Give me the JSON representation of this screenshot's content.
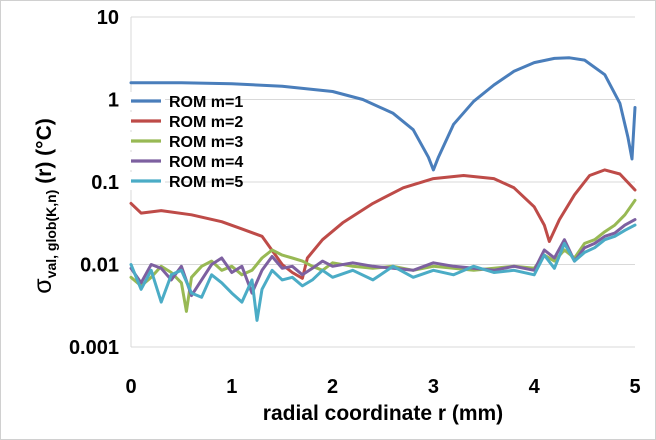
{
  "chart_data": {
    "type": "line",
    "title": "",
    "xlabel": "radial coordinate r (mm)",
    "ylabel": {
      "sigma": "σ",
      "subscript": "val, glob(K,n)",
      "rest": " (r) (°C)"
    },
    "xlim": [
      0,
      5
    ],
    "ylim": [
      0.001,
      10
    ],
    "yscale": "log",
    "grid": "horizontal",
    "legend_position": "upper-left",
    "x_ticks": [
      "0",
      "1",
      "2",
      "3",
      "4",
      "5"
    ],
    "y_ticks": [
      "0.001",
      "0.01",
      "0.1",
      "1",
      "10"
    ],
    "series": [
      {
        "name": "ROM m=1",
        "color": "#4a7ebb",
        "x": [
          0,
          0.5,
          1.0,
          1.5,
          2.0,
          2.3,
          2.6,
          2.8,
          2.95,
          3.0,
          3.05,
          3.2,
          3.4,
          3.6,
          3.8,
          4.0,
          4.2,
          4.35,
          4.5,
          4.7,
          4.85,
          4.93,
          4.97,
          5.0
        ],
        "y": [
          1.6,
          1.6,
          1.55,
          1.45,
          1.25,
          1.0,
          0.68,
          0.43,
          0.2,
          0.14,
          0.2,
          0.5,
          0.95,
          1.5,
          2.2,
          2.8,
          3.15,
          3.2,
          3.0,
          2.0,
          0.9,
          0.35,
          0.19,
          0.8
        ]
      },
      {
        "name": "ROM m=2",
        "color": "#be4b48",
        "x": [
          0,
          0.1,
          0.3,
          0.6,
          0.9,
          1.1,
          1.3,
          1.5,
          1.6,
          1.7,
          1.75,
          1.9,
          2.1,
          2.4,
          2.7,
          3.0,
          3.3,
          3.6,
          3.8,
          4.0,
          4.1,
          4.15,
          4.25,
          4.4,
          4.55,
          4.7,
          4.85,
          5.0
        ],
        "y": [
          0.055,
          0.042,
          0.045,
          0.04,
          0.033,
          0.027,
          0.022,
          0.01,
          0.008,
          0.0068,
          0.012,
          0.02,
          0.032,
          0.055,
          0.085,
          0.11,
          0.12,
          0.11,
          0.085,
          0.05,
          0.03,
          0.019,
          0.035,
          0.07,
          0.12,
          0.14,
          0.125,
          0.08
        ]
      },
      {
        "name": "ROM m=3",
        "color": "#98b954",
        "x": [
          0,
          0.1,
          0.2,
          0.3,
          0.4,
          0.5,
          0.55,
          0.6,
          0.7,
          0.8,
          0.9,
          1.0,
          1.1,
          1.2,
          1.3,
          1.4,
          1.5,
          1.6,
          1.7,
          1.8,
          1.9,
          2.0,
          2.2,
          2.4,
          2.6,
          2.8,
          3.0,
          3.2,
          3.4,
          3.6,
          3.8,
          4.0,
          4.1,
          4.2,
          4.3,
          4.4,
          4.5,
          4.6,
          4.7,
          4.8,
          4.9,
          5.0
        ],
        "y": [
          0.007,
          0.0055,
          0.007,
          0.0095,
          0.008,
          0.006,
          0.0027,
          0.007,
          0.0095,
          0.011,
          0.0085,
          0.0095,
          0.0075,
          0.0085,
          0.012,
          0.015,
          0.013,
          0.012,
          0.011,
          0.0095,
          0.0085,
          0.0105,
          0.0095,
          0.009,
          0.0095,
          0.0085,
          0.0095,
          0.009,
          0.0085,
          0.009,
          0.0095,
          0.009,
          0.013,
          0.011,
          0.015,
          0.012,
          0.018,
          0.02,
          0.025,
          0.03,
          0.04,
          0.06
        ]
      },
      {
        "name": "ROM m=4",
        "color": "#7d60a0",
        "x": [
          0,
          0.1,
          0.2,
          0.3,
          0.4,
          0.5,
          0.6,
          0.7,
          0.8,
          0.9,
          1.0,
          1.1,
          1.2,
          1.3,
          1.4,
          1.5,
          1.6,
          1.7,
          1.8,
          1.9,
          2.0,
          2.2,
          2.4,
          2.6,
          2.8,
          3.0,
          3.2,
          3.4,
          3.6,
          3.8,
          4.0,
          4.1,
          4.2,
          4.3,
          4.4,
          4.5,
          4.6,
          4.7,
          4.8,
          4.9,
          5.0
        ],
        "y": [
          0.009,
          0.006,
          0.01,
          0.009,
          0.0065,
          0.0095,
          0.0042,
          0.0065,
          0.01,
          0.012,
          0.008,
          0.0095,
          0.0045,
          0.0085,
          0.0125,
          0.009,
          0.0095,
          0.0075,
          0.009,
          0.011,
          0.0095,
          0.0105,
          0.0095,
          0.009,
          0.0085,
          0.0105,
          0.0095,
          0.009,
          0.0085,
          0.0095,
          0.0085,
          0.015,
          0.012,
          0.02,
          0.011,
          0.016,
          0.018,
          0.022,
          0.024,
          0.03,
          0.035
        ]
      },
      {
        "name": "ROM m=5",
        "color": "#4bacc6",
        "x": [
          0,
          0.1,
          0.2,
          0.3,
          0.4,
          0.5,
          0.6,
          0.7,
          0.8,
          0.9,
          1.0,
          1.1,
          1.2,
          1.25,
          1.3,
          1.4,
          1.5,
          1.6,
          1.7,
          1.8,
          1.9,
          2.0,
          2.2,
          2.4,
          2.6,
          2.8,
          3.0,
          3.2,
          3.4,
          3.6,
          3.8,
          4.0,
          4.1,
          4.2,
          4.3,
          4.4,
          4.5,
          4.6,
          4.7,
          4.8,
          4.9,
          5.0
        ],
        "y": [
          0.01,
          0.005,
          0.0085,
          0.0035,
          0.0075,
          0.0085,
          0.0045,
          0.004,
          0.0075,
          0.006,
          0.0045,
          0.0035,
          0.0065,
          0.0021,
          0.005,
          0.0085,
          0.0065,
          0.007,
          0.0055,
          0.0065,
          0.0085,
          0.007,
          0.0085,
          0.0065,
          0.0095,
          0.007,
          0.0085,
          0.0075,
          0.0095,
          0.008,
          0.0085,
          0.0075,
          0.013,
          0.009,
          0.018,
          0.011,
          0.014,
          0.016,
          0.02,
          0.022,
          0.026,
          0.03
        ]
      }
    ]
  }
}
